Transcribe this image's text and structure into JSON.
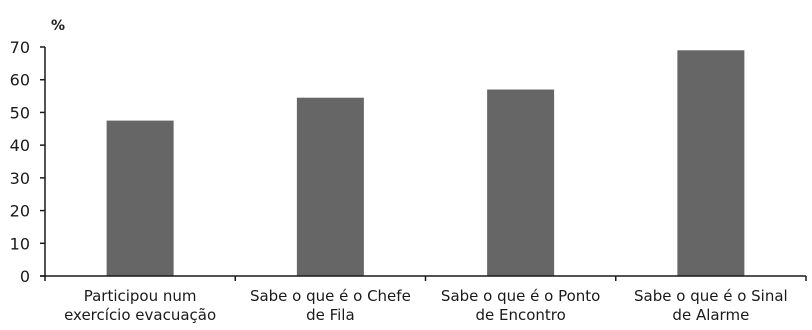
{
  "chart_data": {
    "type": "bar",
    "ylabel": "%",
    "ylim": [
      0,
      70
    ],
    "yticks": [
      0,
      10,
      20,
      30,
      40,
      50,
      60,
      70
    ],
    "grid": false,
    "legend": "none",
    "categories": [
      "Participou num exercício evacuação",
      "Sabe o que é o Chefe de Fila",
      "Sabe o que é o Ponto de Encontro",
      "Sabe o que é o Sinal de Alarme"
    ],
    "category_lines": [
      [
        "Participou num",
        "exercício evacuação"
      ],
      [
        "Sabe o que é o Chefe",
        "de Fila"
      ],
      [
        "Sabe o que é o Ponto",
        "de Encontro"
      ],
      [
        "Sabe o que é o Sinal",
        "de Alarme"
      ]
    ],
    "values": [
      47.5,
      54.5,
      57,
      69
    ],
    "colors": {
      "bar": "#666666",
      "axis": "#1a1a1a",
      "text": "#1a1a1a"
    }
  }
}
